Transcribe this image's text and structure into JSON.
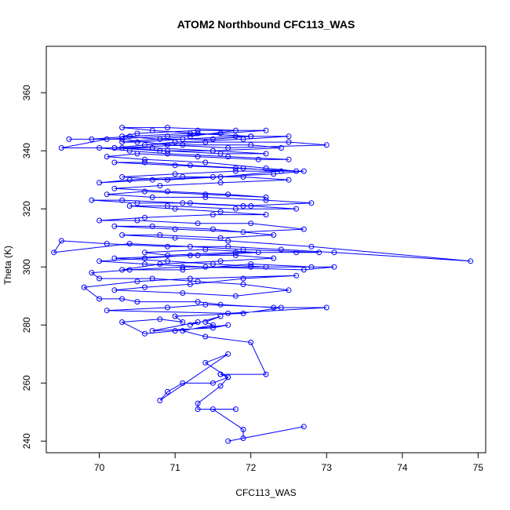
{
  "chart_data": {
    "type": "line",
    "title": "ATOM2 Northbound CFC113_WAS",
    "xlabel": "CFC113_WAS",
    "ylabel": "Theta (K)",
    "xlim": [
      69.3,
      75.1
    ],
    "ylim": [
      236,
      376
    ],
    "x_ticks": [
      70,
      71,
      72,
      73,
      74,
      75
    ],
    "y_ticks": [
      240,
      260,
      280,
      300,
      320,
      340,
      360
    ],
    "grid": false,
    "legend": "none",
    "marker": "open-circle",
    "color": "#0000ff",
    "series": [
      {
        "x": [
          71.7,
          72.7,
          71.9,
          71.9,
          71.5,
          71.8,
          71.3,
          71.3,
          71.6,
          71.7,
          71.4,
          71.7,
          70.8,
          70.9,
          71.1,
          71.5,
          71.7,
          71.6,
          71.6,
          72.2,
          72.0,
          71.4,
          71.1,
          71.5,
          71.4,
          71.6,
          71.2,
          71.3,
          70.7,
          71.5,
          71.7,
          71.0,
          70.6,
          70.3,
          70.8,
          71.1,
          71.0,
          71.9,
          72.4,
          71.4,
          70.9,
          70.1,
          71.7,
          73.0,
          72.3,
          71.6,
          71.3,
          70.5,
          70.3,
          70.0,
          69.8,
          70.5,
          71.2,
          72.6,
          71.9,
          71.2,
          70.6,
          70.2,
          71.1,
          71.8,
          72.5,
          71.9,
          71.3,
          70.7,
          70.0,
          69.9,
          70.4,
          71.1,
          72.0,
          72.8,
          72.0,
          71.1,
          70.3,
          70.8,
          71.6,
          72.3,
          71.8,
          71.2,
          70.6,
          70.0,
          70.6,
          71.4,
          72.7,
          73.1,
          72.2,
          71.5,
          70.9,
          70.2,
          71.3,
          72.1,
          71.4,
          70.6,
          70.9,
          71.8,
          72.6,
          72.9,
          71.9,
          71.2,
          70.4,
          69.4,
          69.5,
          70.1,
          70.9,
          71.7,
          72.4,
          73.1,
          74.9,
          72.8,
          71.7,
          71.0,
          70.3,
          70.8,
          71.6,
          72.3,
          71.5,
          70.7,
          70.2,
          71.0,
          71.9,
          72.7,
          72.0,
          71.3,
          70.5,
          70.0,
          70.6,
          71.5,
          72.2,
          71.6,
          71.0,
          70.4,
          70.9,
          71.8,
          72.6,
          72.0,
          71.2,
          70.5,
          69.9,
          70.3,
          71.1,
          71.9,
          72.8,
          72.2,
          71.4,
          70.7,
          70.1,
          70.6,
          71.4,
          72.2,
          71.7,
          70.9,
          70.2,
          70.8,
          71.6,
          72.5,
          71.9,
          71.1,
          70.4,
          70.0,
          70.7,
          71.5,
          72.3,
          72.7,
          71.8,
          71.0,
          70.3,
          70.9,
          71.6,
          72.4,
          71.9,
          71.2,
          70.6,
          70.2,
          71.0,
          71.8,
          72.6,
          72.2,
          71.4,
          70.6,
          70.1,
          70.5,
          71.3,
          72.1,
          72.5,
          71.7,
          70.9,
          70.4,
          70.0,
          70.7,
          71.5,
          72.2,
          71.6,
          70.9,
          70.3,
          71.1,
          72.0,
          72.4,
          71.5,
          70.8,
          70.2,
          70.6,
          71.4,
          72.5,
          73.0,
          71.7,
          70.9,
          70.3,
          69.6,
          69.9,
          70.4,
          71.2,
          72.0,
          71.5,
          70.8,
          70.3,
          70.5,
          71.3,
          72.2,
          71.6,
          70.9,
          70.1,
          69.5,
          70.2,
          71.0,
          71.9,
          72.5,
          71.8,
          71.1,
          70.5,
          70.3,
          71.2,
          71.8,
          70.9,
          70.3,
          70.7,
          71.3,
          72.0
        ],
        "y": [
          240,
          245,
          241,
          244,
          251,
          251,
          251,
          253,
          259,
          262,
          267,
          270,
          254,
          257,
          260,
          260,
          262,
          263,
          263,
          263,
          274,
          276,
          278,
          280,
          281,
          283,
          280,
          281,
          278,
          279,
          280,
          278,
          277,
          281,
          282,
          281,
          283,
          284,
          286,
          287,
          286,
          285,
          284,
          286,
          286,
          287,
          288,
          288,
          289,
          289,
          293,
          295,
          296,
          297,
          296,
          294,
          293,
          292,
          291,
          290,
          292,
          294,
          295,
          296,
          296,
          298,
          299,
          300,
          300,
          300,
          301,
          299,
          299,
          301,
          302,
          303,
          304,
          304,
          303,
          302,
          301,
          300,
          299,
          300,
          300,
          301,
          302,
          303,
          304,
          305,
          306,
          305,
          304,
          305,
          305,
          305,
          306,
          307,
          308,
          305,
          309,
          308,
          307,
          307,
          306,
          305,
          302,
          307,
          309,
          310,
          311,
          311,
          310,
          311,
          313,
          314,
          314,
          313,
          312,
          313,
          315,
          315,
          316,
          316,
          317,
          318,
          318,
          319,
          320,
          321,
          321,
          320,
          320,
          321,
          322,
          322,
          323,
          323,
          322,
          321,
          322,
          323,
          324,
          324,
          325,
          326,
          325,
          324,
          325,
          326,
          327,
          328,
          329,
          330,
          331,
          331,
          330,
          329,
          330,
          331,
          332,
          333,
          333,
          332,
          331,
          330,
          331,
          333,
          334,
          335,
          336,
          336,
          335,
          334,
          333,
          334,
          336,
          337,
          338,
          339,
          338,
          337,
          337,
          338,
          339,
          340,
          341,
          341,
          340,
          339,
          339,
          340,
          341,
          342,
          342,
          341,
          340,
          340,
          341,
          342,
          343,
          343,
          342,
          341,
          342,
          344,
          344,
          344,
          345,
          346,
          345,
          344,
          344,
          345,
          346,
          347,
          347,
          346,
          345,
          344,
          341,
          341,
          343,
          344,
          345,
          345,
          344,
          343,
          343,
          345,
          347,
          348,
          348,
          347,
          346,
          345
        ]
      }
    ]
  }
}
